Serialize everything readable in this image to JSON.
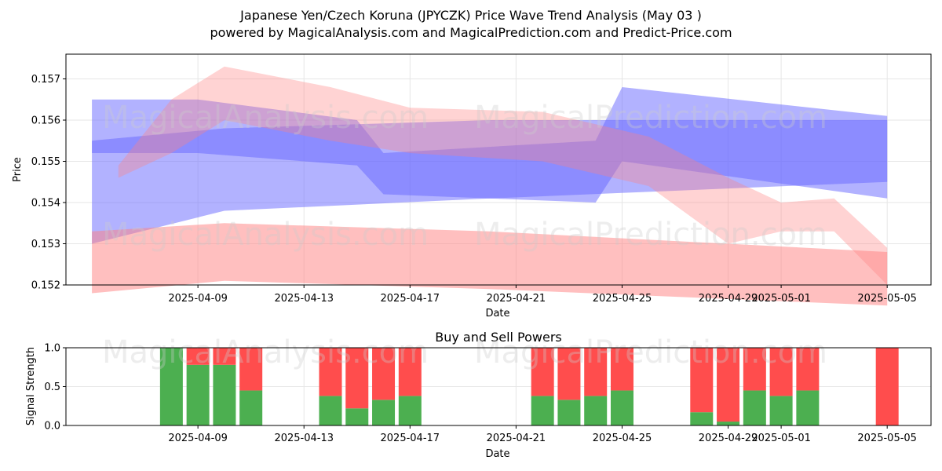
{
  "header": {
    "title": "Japanese Yen/Czech Koruna (JPYCZK) Price Wave Trend Analysis (May 03 )",
    "subtitle": "powered by MagicalAnalysis.com and MagicalPrediction.com and Predict-Price.com"
  },
  "watermarks": [
    "MagicalAnalysis.com",
    "MagicalPrediction.com"
  ],
  "colors": {
    "buy": "#4caf50",
    "sell": "#ff4d4d",
    "blue_band": "#6666ff",
    "red_band": "#ff8080"
  },
  "chart_data": [
    {
      "type": "area",
      "title": "",
      "xlabel": "Date",
      "ylabel": "Price",
      "ylim": [
        0.152,
        0.1576
      ],
      "xlim": [
        "2025-04-05",
        "2025-05-06"
      ],
      "x_ticks": [
        "2025-04-09",
        "2025-04-13",
        "2025-04-17",
        "2025-04-21",
        "2025-04-25",
        "2025-04-29",
        "2025-05-01",
        "2025-05-05"
      ],
      "y_ticks": [
        "0.152",
        "0.153",
        "0.154",
        "0.155",
        "0.156",
        "0.157"
      ],
      "grid": true,
      "bands": [
        {
          "color": "blue",
          "x": [
            "2025-04-05",
            "2025-04-10",
            "2025-04-20",
            "2025-05-05"
          ],
          "upper": [
            0.1555,
            0.1558,
            0.156,
            0.156
          ],
          "lower": [
            0.153,
            0.1538,
            0.1541,
            0.1545
          ]
        },
        {
          "color": "blue",
          "x": [
            "2025-04-05",
            "2025-04-09",
            "2025-04-15",
            "2025-04-16",
            "2025-04-24",
            "2025-04-25",
            "2025-05-05"
          ],
          "upper": [
            0.1565,
            0.1565,
            0.156,
            0.1552,
            0.1555,
            0.1568,
            0.1561
          ],
          "lower": [
            0.1552,
            0.1552,
            0.1549,
            0.1542,
            0.154,
            0.155,
            0.1541
          ]
        },
        {
          "color": "red",
          "x": [
            "2025-04-05",
            "2025-04-10",
            "2025-04-20",
            "2025-05-05"
          ],
          "upper": [
            0.1533,
            0.1535,
            0.1533,
            0.1528
          ],
          "lower": [
            0.1518,
            0.1521,
            0.1519,
            0.1515
          ]
        },
        {
          "color": "red",
          "x": [
            "2025-04-06",
            "2025-04-08",
            "2025-04-10",
            "2025-04-14",
            "2025-04-17",
            "2025-04-22",
            "2025-04-26",
            "2025-04-29",
            "2025-05-01",
            "2025-05-03",
            "2025-05-05"
          ],
          "upper": [
            0.1549,
            0.1565,
            0.1573,
            0.1568,
            0.1563,
            0.1562,
            0.1556,
            0.1546,
            0.154,
            0.1541,
            0.1529
          ],
          "lower": [
            0.1546,
            0.1552,
            0.156,
            0.1555,
            0.1552,
            0.155,
            0.1544,
            0.153,
            0.1533,
            0.1533,
            0.152
          ]
        }
      ]
    },
    {
      "type": "bar",
      "title": "Buy and Sell Powers",
      "xlabel": "Date",
      "ylabel": "Signal Strength",
      "ylim": [
        0,
        1.0
      ],
      "y_ticks": [
        "0.0",
        "0.5",
        "1.0"
      ],
      "grid": true,
      "categories": [
        "2025-04-08",
        "2025-04-09",
        "2025-04-10",
        "2025-04-11",
        "2025-04-14",
        "2025-04-15",
        "2025-04-16",
        "2025-04-17",
        "2025-04-22",
        "2025-04-23",
        "2025-04-24",
        "2025-04-25",
        "2025-04-28",
        "2025-04-29",
        "2025-04-30",
        "2025-05-01",
        "2025-05-02",
        "2025-05-05"
      ],
      "series": [
        {
          "name": "Buy",
          "values": [
            1.0,
            0.78,
            0.78,
            0.45,
            0.38,
            0.22,
            0.33,
            0.38,
            0.38,
            0.33,
            0.38,
            0.45,
            0.17,
            0.05,
            0.45,
            0.38,
            0.45,
            0.0
          ]
        },
        {
          "name": "Sell",
          "values": [
            0.0,
            0.22,
            0.22,
            0.55,
            0.62,
            0.78,
            0.67,
            0.62,
            0.62,
            0.67,
            0.62,
            0.55,
            0.83,
            0.95,
            0.55,
            0.62,
            0.55,
            1.0
          ]
        }
      ]
    }
  ]
}
